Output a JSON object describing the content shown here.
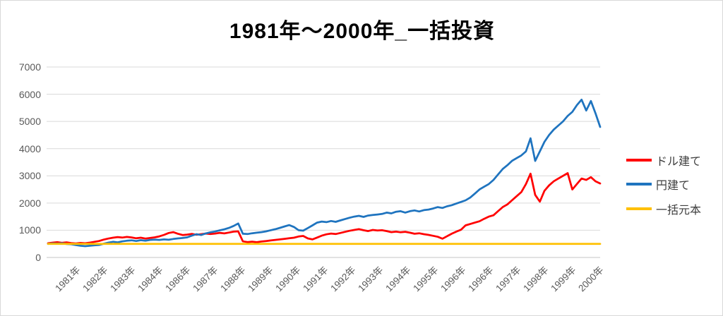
{
  "chart_data": {
    "type": "line",
    "title": "1981年～2000年_一括投資",
    "x_axis": {
      "tick_labels": [
        "1981年",
        "1982年",
        "1983年",
        "1984年",
        "1986年",
        "1987年",
        "1988年",
        "1989年",
        "1990年",
        "1991年",
        "1992年",
        "1993年",
        "1994年",
        "1995年",
        "1996年",
        "1996年",
        "1997年",
        "1998年",
        "1999年",
        "2000年"
      ]
    },
    "y_axis": {
      "min": 0,
      "max": 7000,
      "step": 1000,
      "tick_labels": [
        "0",
        "1000",
        "2000",
        "3000",
        "4000",
        "5000",
        "6000",
        "7000"
      ]
    },
    "grid": true,
    "legend_position": "right",
    "year_range": [
      1981,
      2000
    ],
    "points_per_year": 6,
    "series": [
      {
        "name": "ドル建て",
        "color": "#FF0000",
        "values": [
          520,
          545,
          560,
          540,
          555,
          530,
          515,
          535,
          520,
          545,
          575,
          605,
          655,
          695,
          725,
          750,
          730,
          755,
          735,
          705,
          725,
          695,
          715,
          740,
          775,
          830,
          900,
          930,
          870,
          825,
          840,
          865,
          835,
          855,
          880,
          860,
          880,
          905,
          885,
          915,
          950,
          960,
          590,
          565,
          580,
          560,
          585,
          605,
          625,
          645,
          665,
          685,
          705,
          725,
          770,
          790,
          700,
          665,
          730,
          800,
          850,
          880,
          860,
          900,
          940,
          980,
          1010,
          1040,
          1000,
          970,
          1010,
          990,
          1000,
          970,
          930,
          950,
          925,
          945,
          910,
          870,
          890,
          855,
          830,
          795,
          760,
          690,
          780,
          870,
          950,
          1020,
          1180,
          1230,
          1280,
          1330,
          1420,
          1500,
          1550,
          1700,
          1850,
          1950,
          2100,
          2250,
          2400,
          2700,
          3080,
          2300,
          2050,
          2450,
          2650,
          2800,
          2900,
          3000,
          3100,
          2500,
          2700,
          2900,
          2850,
          2950,
          2800,
          2720
        ]
      },
      {
        "name": "円建て",
        "color": "#1F74BF",
        "values": [
          500,
          515,
          505,
          520,
          495,
          485,
          455,
          430,
          415,
          430,
          445,
          460,
          505,
          545,
          575,
          555,
          590,
          615,
          630,
          605,
          635,
          615,
          645,
          655,
          645,
          665,
          650,
          680,
          700,
          715,
          740,
          800,
          855,
          825,
          885,
          925,
          955,
          995,
          1035,
          1085,
          1160,
          1250,
          870,
          860,
          890,
          910,
          930,
          960,
          1000,
          1040,
          1090,
          1140,
          1190,
          1120,
          1000,
          985,
          1080,
          1180,
          1280,
          1320,
          1300,
          1340,
          1310,
          1360,
          1410,
          1460,
          1500,
          1530,
          1490,
          1540,
          1560,
          1580,
          1600,
          1650,
          1620,
          1680,
          1700,
          1650,
          1700,
          1730,
          1690,
          1740,
          1760,
          1800,
          1850,
          1820,
          1880,
          1920,
          1980,
          2040,
          2100,
          2200,
          2350,
          2500,
          2600,
          2700,
          2850,
          3050,
          3250,
          3390,
          3550,
          3650,
          3750,
          3900,
          4380,
          3550,
          3900,
          4250,
          4500,
          4700,
          4850,
          5000,
          5200,
          5350,
          5600,
          5800,
          5400,
          5750,
          5300,
          4800
        ]
      },
      {
        "name": "一括元本",
        "color": "#FFC000",
        "constant": 500
      }
    ]
  },
  "colors": {
    "gridline": "#D9D9D9",
    "axis_line": "#C6C6C6",
    "axis_text": "#595959",
    "legend_text": "#3F3F3F",
    "title_text": "#000000",
    "background": "#FFFFFF",
    "border": "#D9D9D9"
  }
}
